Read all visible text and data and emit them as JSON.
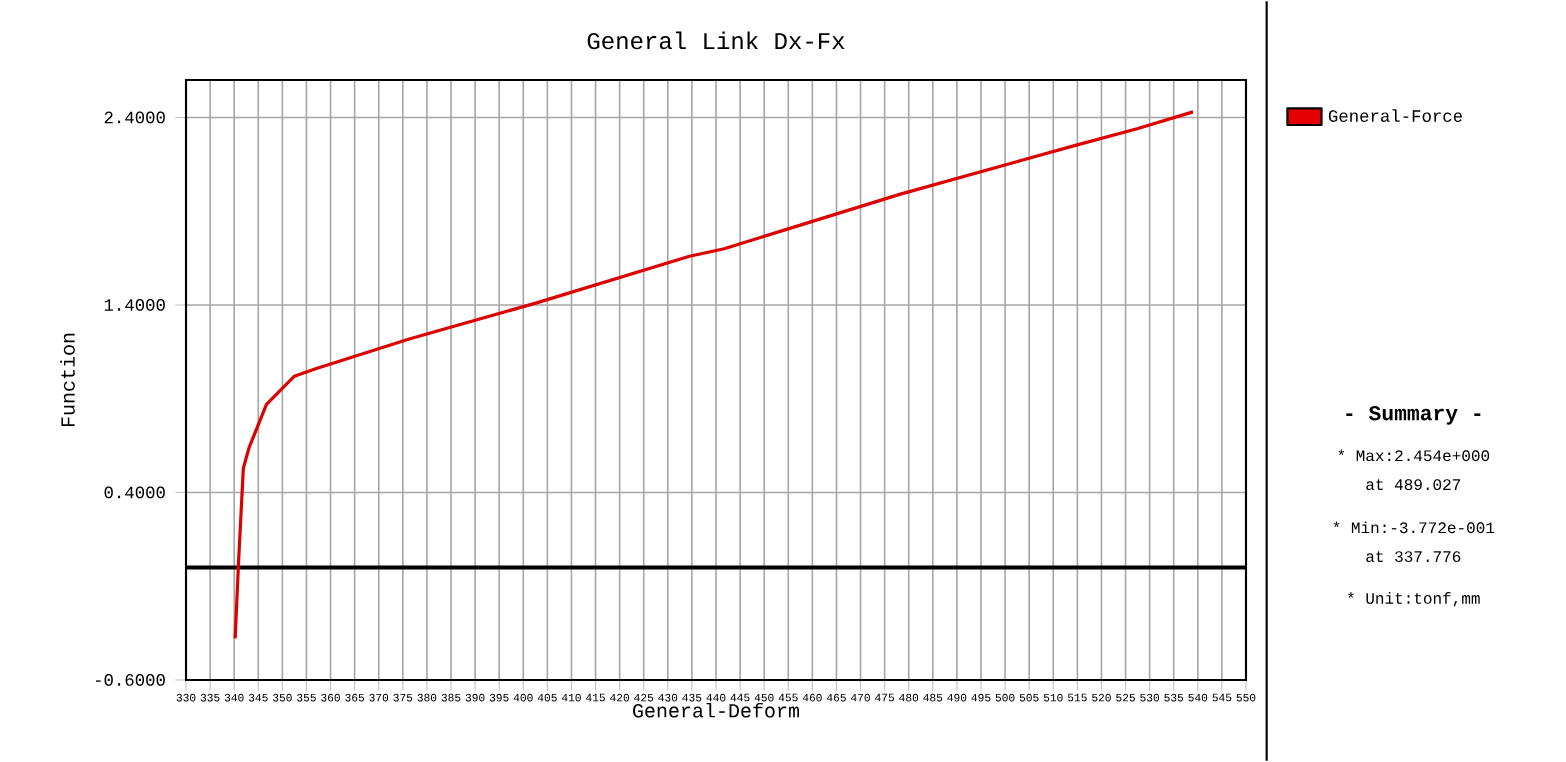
{
  "chart_data": {
    "type": "line",
    "title": "General Link Dx-Fx",
    "xlabel": "General-Deform",
    "ylabel": "Function",
    "xlim": [
      330,
      550
    ],
    "ylim": [
      -0.6,
      2.6
    ],
    "xticks": [
      330,
      335,
      340,
      345,
      350,
      355,
      360,
      365,
      370,
      375,
      380,
      385,
      390,
      395,
      400,
      405,
      410,
      415,
      420,
      425,
      430,
      435,
      440,
      445,
      450,
      455,
      460,
      465,
      470,
      475,
      480,
      485,
      490,
      495,
      500,
      505,
      510,
      515,
      520,
      525,
      530,
      535,
      540,
      545,
      550
    ],
    "yticks": [
      {
        "value": 2.4,
        "label": "2.4000"
      },
      {
        "value": 1.4,
        "label": "1.4000"
      },
      {
        "value": 0.4,
        "label": "0.4000"
      },
      {
        "value": -0.6,
        "label": "-0.6000"
      }
    ],
    "grid": true,
    "legend": "top right",
    "marker": "none",
    "line_style": "solid",
    "ref_lines": [
      {
        "axis": "y",
        "value": 0,
        "color": "#000000"
      }
    ],
    "series": [
      {
        "name": "General-Force",
        "color": "#dd0000",
        "x": [
          340.2,
          340.9,
          341.9,
          343.1,
          346.7,
          352.5,
          356.9,
          376.5,
          402.6,
          434.5,
          441.7,
          478.1,
          514.4,
          527.4,
          539.0
        ],
        "values": [
          -0.378,
          0.025,
          0.53,
          0.64,
          0.87,
          1.02,
          1.06,
          1.22,
          1.41,
          1.66,
          1.7,
          1.99,
          2.25,
          2.34,
          2.43
        ]
      }
    ],
    "annotations": [
      "- Summary -",
      "* Max:2.454e+000",
      "at 489.027",
      "* Min:-3.772e-001",
      "at 337.776",
      "* Unit:tonf,mm"
    ]
  }
}
